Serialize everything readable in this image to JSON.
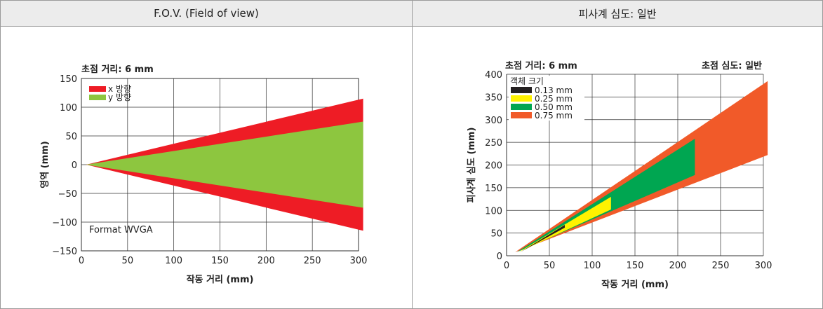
{
  "headers": {
    "left": "F.O.V. (Field of view)",
    "right": "피사계 심도: 일반"
  },
  "chart_data": [
    {
      "type": "area",
      "title": "초점 거리: 6 mm",
      "xlabel": "작동 거리 (mm)",
      "ylabel": "영역 (mm)",
      "xlim": [
        0,
        300
      ],
      "ylim": [
        -150,
        150
      ],
      "xticks": [
        0,
        50,
        100,
        150,
        200,
        250,
        300
      ],
      "yticks": [
        150,
        100,
        50,
        0,
        -50,
        -100,
        -150
      ],
      "annotation": "Format WVGA",
      "legend_position": "top-left",
      "grid": true,
      "series": [
        {
          "name": "x 방향",
          "color": "#ee1c25",
          "x": [
            5,
            305
          ],
          "upper": [
            0,
            115
          ],
          "lower": [
            0,
            -115
          ]
        },
        {
          "name": "y 방향",
          "color": "#8dc63f",
          "x": [
            5,
            305
          ],
          "upper": [
            0,
            75
          ],
          "lower": [
            0,
            -75
          ]
        }
      ]
    },
    {
      "type": "area",
      "title": "초점 거리: 6  mm",
      "subtitle": "초점 심도: 일반",
      "xlabel": "작동 거리 (mm)",
      "ylabel": "피사계 심도 (mm)",
      "xlim": [
        0,
        300
      ],
      "ylim": [
        0,
        400
      ],
      "xticks": [
        0,
        50,
        100,
        150,
        200,
        250,
        300
      ],
      "yticks": [
        0,
        50,
        100,
        150,
        200,
        250,
        300,
        350,
        400
      ],
      "legend_title": "객체 크기",
      "legend_position": "top-left",
      "grid": true,
      "series": [
        {
          "name": "0.75  mm",
          "color": "#f15a29",
          "points": [
            [
              10,
              8
            ],
            [
              305,
              385
            ],
            [
              305,
              222
            ]
          ]
        },
        {
          "name": "0.50  mm",
          "color": "#00a651",
          "points": [
            [
              12,
              8
            ],
            [
              220,
              258
            ],
            [
              220,
              178
            ]
          ]
        },
        {
          "name": "0.25  mm",
          "color": "#fff200",
          "points": [
            [
              14,
              8
            ],
            [
              122,
              130
            ],
            [
              122,
              102
            ]
          ]
        },
        {
          "name": "0.13  mm",
          "color": "#231f20",
          "points": [
            [
              16,
              8
            ],
            [
              68,
              68
            ],
            [
              68,
              62
            ]
          ]
        }
      ]
    }
  ]
}
